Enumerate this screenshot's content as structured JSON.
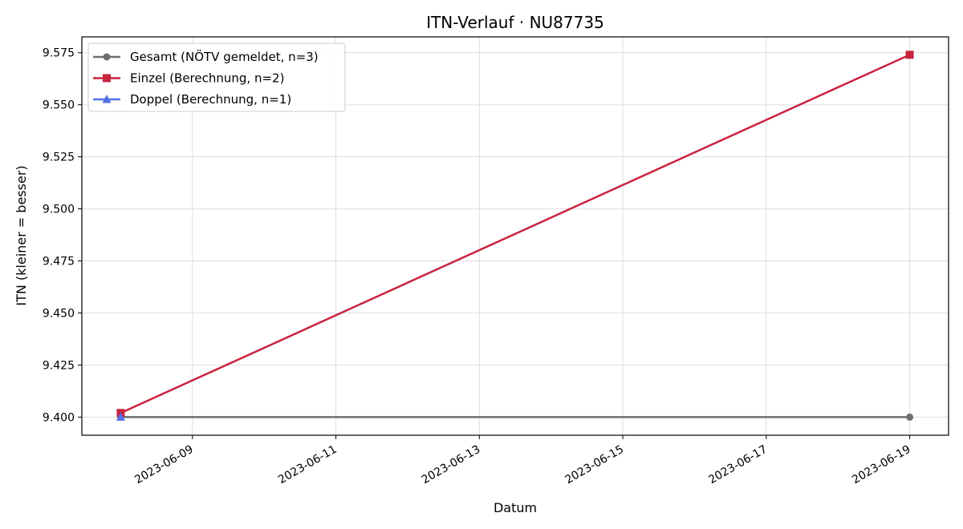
{
  "chart_data": {
    "type": "line",
    "title": "ITN-Verlauf · NU87735",
    "xlabel": "Datum",
    "ylabel": "ITN  (kleiner = besser)",
    "x_type": "date",
    "xlim": [
      "2023-06-07T11:00",
      "2023-06-19T13:00"
    ],
    "ylim": [
      9.3913,
      9.5826
    ],
    "x_ticks": [
      "2023-06-09",
      "2023-06-11",
      "2023-06-13",
      "2023-06-15",
      "2023-06-17",
      "2023-06-19"
    ],
    "y_ticks": [
      "9.400",
      "9.425",
      "9.450",
      "9.475",
      "9.500",
      "9.525",
      "9.550",
      "9.575"
    ],
    "grid": true,
    "legend_position": "top-left",
    "series": [
      {
        "name": "Gesamt (NÖTV gemeldet, n=3)",
        "color": "#6e6e6e",
        "marker": "circle",
        "points": [
          {
            "x": "2023-06-08",
            "y": 9.4
          },
          {
            "x": "2023-06-19",
            "y": 9.4
          }
        ]
      },
      {
        "name": "Einzel (Berechnung, n=2)",
        "color": "#c8233f",
        "marker": "square",
        "points": [
          {
            "x": "2023-06-08",
            "y": 9.402
          },
          {
            "x": "2023-06-19",
            "y": 9.574
          }
        ]
      },
      {
        "name": "Doppel (Berechnung, n=1)",
        "color": "#5470e8",
        "marker": "triangle",
        "points": [
          {
            "x": "2023-06-08",
            "y": 9.4
          }
        ]
      }
    ]
  }
}
